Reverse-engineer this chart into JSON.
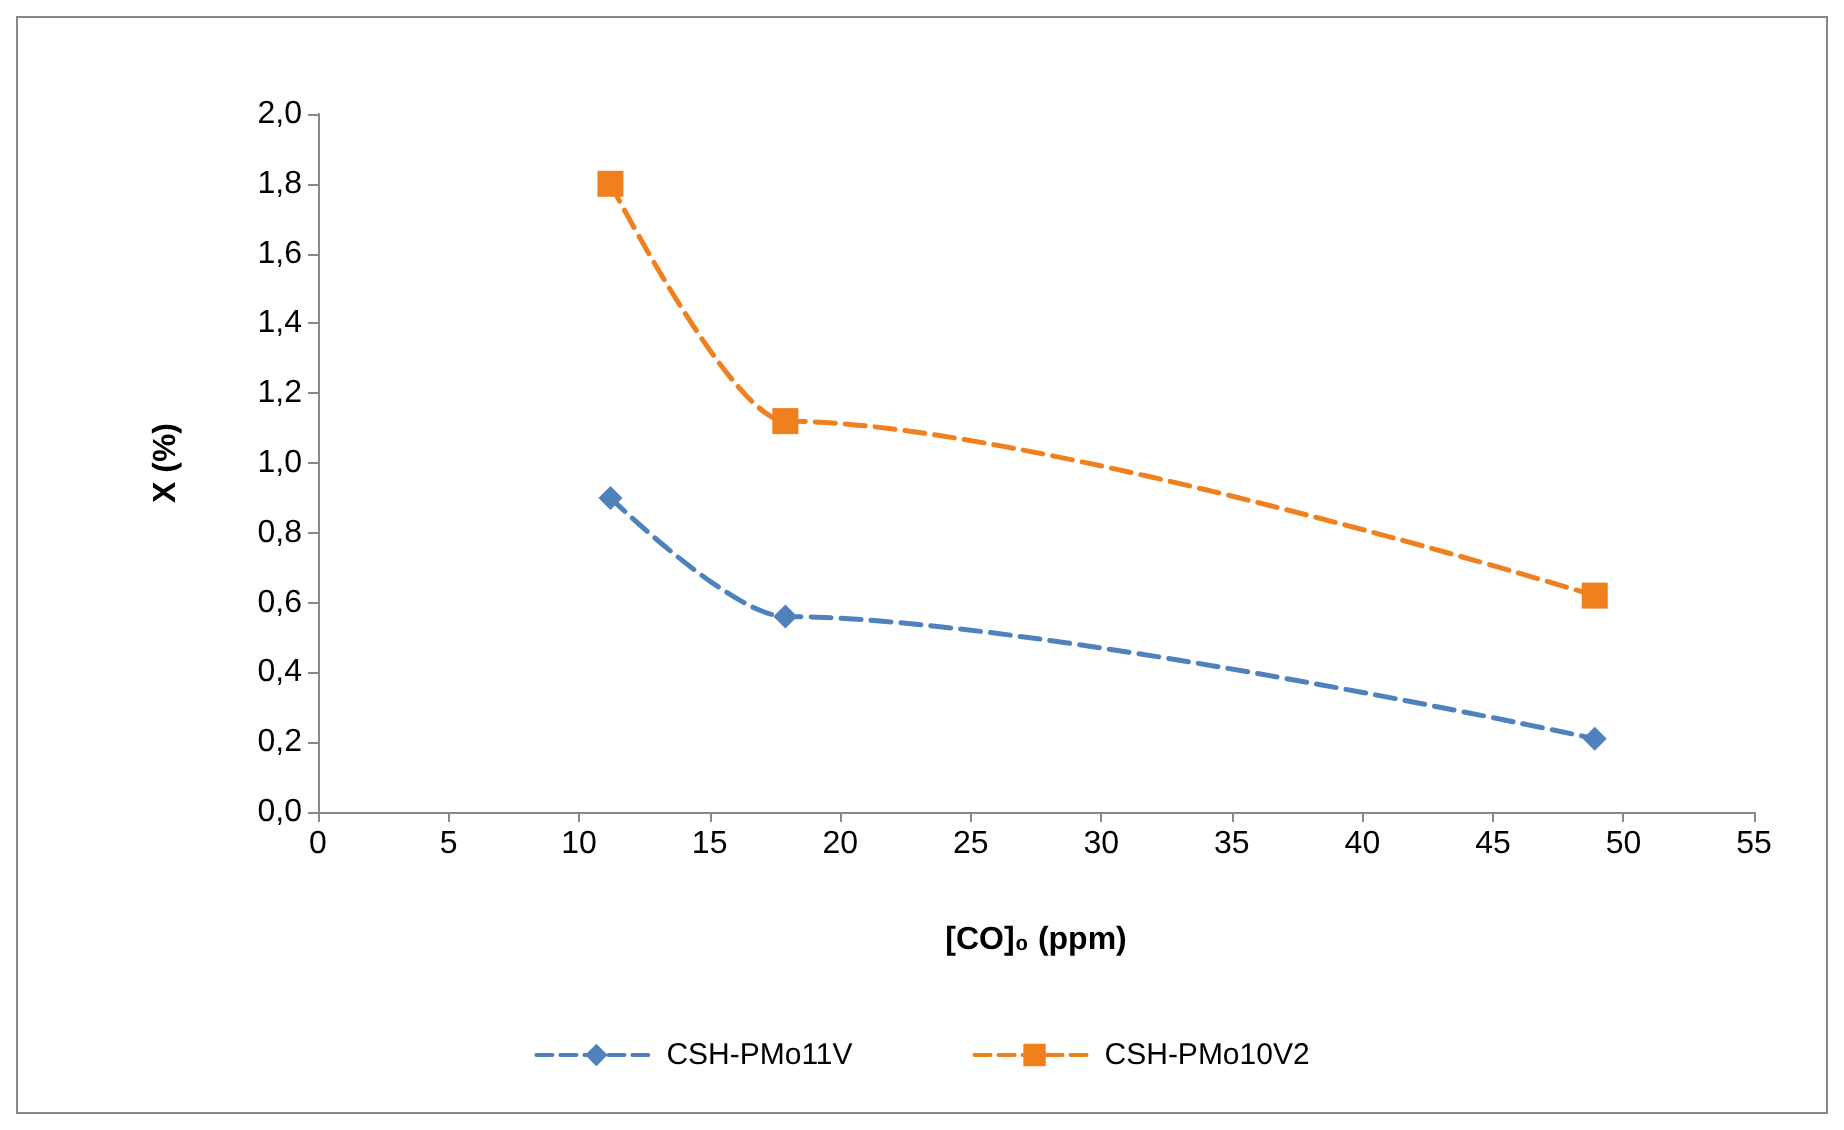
{
  "chart_data": {
    "type": "line",
    "xlabel": "[CO]₀ (ppm)",
    "ylabel": "X (%)",
    "xlim": [
      0,
      55
    ],
    "xticks": [
      0,
      5,
      10,
      15,
      20,
      25,
      30,
      35,
      40,
      45,
      50,
      55
    ],
    "ylim": [
      0,
      2
    ],
    "yticks": [
      {
        "value": 0,
        "label": "0,0"
      },
      {
        "value": 0.2,
        "label": "0,2"
      },
      {
        "value": 0.4,
        "label": "0,4"
      },
      {
        "value": 0.6,
        "label": "0,6"
      },
      {
        "value": 0.8,
        "label": "0,8"
      },
      {
        "value": 1.0,
        "label": "1,0"
      },
      {
        "value": 1.2,
        "label": "1,2"
      },
      {
        "value": 1.4,
        "label": "1,4"
      },
      {
        "value": 1.6,
        "label": "1,6"
      },
      {
        "value": 1.8,
        "label": "1,8"
      },
      {
        "value": 2.0,
        "label": "2,0"
      }
    ],
    "grid": false,
    "legend": "bottom",
    "line_style": "dashed",
    "series": [
      {
        "name": "CSH-PMo11V",
        "color": "#4f81bd",
        "marker": "diamond",
        "x": [
          11.2,
          17.9,
          48.9
        ],
        "values": [
          0.9,
          0.56,
          0.21
        ]
      },
      {
        "name": "CSH-PMo10V2",
        "color": "#f07f1e",
        "marker": "square",
        "x": [
          11.2,
          17.9,
          48.9
        ],
        "values": [
          1.8,
          1.12,
          0.62
        ]
      }
    ]
  }
}
